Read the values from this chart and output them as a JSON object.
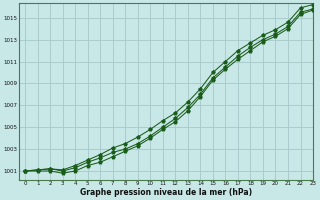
{
  "title": "Graphe pression niveau de la mer (hPa)",
  "bg_color": "#c8e8e8",
  "grid_color": "#aacccc",
  "line_color": "#1a5c1a",
  "xlim": [
    -0.5,
    23
  ],
  "ylim": [
    1000.2,
    1016.3
  ],
  "yticks": [
    1001,
    1003,
    1005,
    1007,
    1009,
    1011,
    1013,
    1015
  ],
  "xticks": [
    0,
    1,
    2,
    3,
    4,
    5,
    6,
    7,
    8,
    9,
    10,
    11,
    12,
    13,
    14,
    15,
    16,
    17,
    18,
    19,
    20,
    21,
    22,
    23
  ],
  "series": [
    [
      1001.0,
      1001.1,
      1001.2,
      1001.0,
      1001.3,
      1001.8,
      1002.2,
      1002.7,
      1003.0,
      1003.5,
      1004.2,
      1005.0,
      1005.8,
      1006.8,
      1008.0,
      1009.5,
      1010.5,
      1011.5,
      1012.3,
      1013.0,
      1013.5,
      1014.2,
      1015.5,
      1015.8
    ],
    [
      1001.0,
      1001.0,
      1001.0,
      1000.8,
      1001.0,
      1001.5,
      1001.8,
      1002.3,
      1002.8,
      1003.3,
      1004.0,
      1004.8,
      1005.5,
      1006.5,
      1007.8,
      1009.3,
      1010.3,
      1011.2,
      1012.0,
      1012.8,
      1013.3,
      1014.0,
      1015.3,
      1015.7
    ],
    [
      1001.0,
      1001.1,
      1001.2,
      1001.1,
      1001.5,
      1002.0,
      1002.5,
      1003.1,
      1003.5,
      1004.1,
      1004.8,
      1005.6,
      1006.3,
      1007.3,
      1008.5,
      1010.0,
      1011.0,
      1012.0,
      1012.7,
      1013.4,
      1013.9,
      1014.6,
      1015.9,
      1016.2
    ]
  ]
}
